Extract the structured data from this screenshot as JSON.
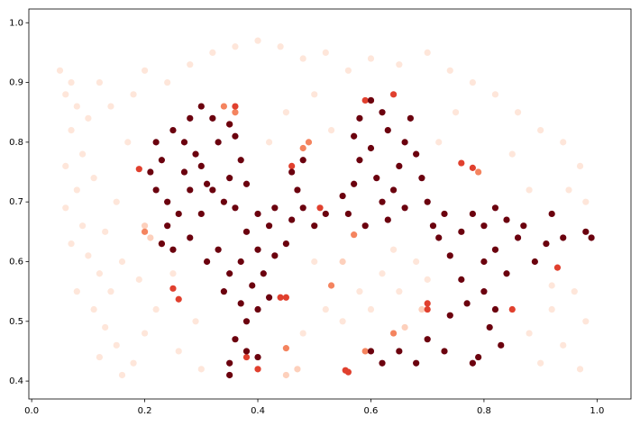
{
  "chart_data": {
    "type": "scatter",
    "xlim": [
      -0.005,
      1.06
    ],
    "ylim": [
      0.37,
      1.023
    ],
    "xticks": [
      {
        "value": 0,
        "label": "0.0"
      },
      0.2,
      0.4,
      0.6,
      0.8,
      {
        "value": 1,
        "label": "1.0"
      }
    ],
    "yticks": [
      0.4,
      0.5,
      0.6,
      0.7,
      0.8,
      0.9,
      {
        "value": 1,
        "label": "1.0"
      }
    ],
    "series": [
      {
        "color": "#fee6da",
        "x": [
          0.05,
          0.07,
          0.06,
          0.08,
          0.1,
          0.07,
          0.09,
          0.06,
          0.11,
          0.08,
          0.06,
          0.09,
          0.07,
          0.1,
          0.12,
          0.08,
          0.11,
          0.13,
          0.15,
          0.12,
          0.16,
          0.18,
          0.14,
          0.16,
          0.13,
          0.15,
          0.17,
          0.14,
          0.12,
          0.18,
          0.2,
          0.24,
          0.28,
          0.32,
          0.36,
          0.4,
          0.44,
          0.48,
          0.52,
          0.56,
          0.6,
          0.65,
          0.7,
          0.74,
          0.78,
          0.82,
          0.86,
          0.9,
          0.94,
          0.97,
          0.95,
          0.98,
          0.96,
          0.92,
          0.98,
          0.94,
          0.9,
          0.97,
          0.88,
          0.92,
          0.85,
          0.88,
          0.45,
          0.5,
          0.53,
          0.42,
          0.5,
          0.52,
          0.48,
          0.55,
          0.58,
          0.62,
          0.65,
          0.6,
          0.68,
          0.7,
          0.64,
          0.72,
          0.75,
          0.2,
          0.22,
          0.26,
          0.29,
          0.3,
          0.25,
          0.19
        ],
        "y": [
          0.92,
          0.9,
          0.88,
          0.86,
          0.84,
          0.82,
          0.78,
          0.76,
          0.74,
          0.72,
          0.69,
          0.66,
          0.63,
          0.61,
          0.58,
          0.55,
          0.52,
          0.49,
          0.46,
          0.44,
          0.41,
          0.43,
          0.55,
          0.6,
          0.65,
          0.7,
          0.8,
          0.86,
          0.9,
          0.88,
          0.92,
          0.9,
          0.93,
          0.95,
          0.96,
          0.97,
          0.96,
          0.94,
          0.95,
          0.92,
          0.94,
          0.93,
          0.95,
          0.92,
          0.9,
          0.88,
          0.85,
          0.82,
          0.8,
          0.76,
          0.72,
          0.7,
          0.55,
          0.52,
          0.5,
          0.46,
          0.43,
          0.42,
          0.48,
          0.56,
          0.78,
          0.72,
          0.85,
          0.88,
          0.82,
          0.8,
          0.6,
          0.52,
          0.48,
          0.5,
          0.55,
          0.58,
          0.55,
          0.52,
          0.6,
          0.57,
          0.62,
          0.8,
          0.85,
          0.48,
          0.52,
          0.45,
          0.5,
          0.42,
          0.58,
          0.57
        ]
      },
      {
        "color": "#fdd0bc",
        "x": [
          0.21,
          0.2,
          0.69,
          0.66,
          0.55,
          0.45,
          0.47
        ],
        "y": [
          0.64,
          0.66,
          0.52,
          0.49,
          0.6,
          0.41,
          0.42
        ]
      },
      {
        "color": "#f4845f",
        "x": [
          0.34,
          0.36,
          0.48,
          0.49,
          0.79,
          0.64,
          0.59,
          0.57,
          0.2,
          0.53,
          0.45
        ],
        "y": [
          0.86,
          0.85,
          0.79,
          0.8,
          0.75,
          0.48,
          0.45,
          0.645,
          0.65,
          0.56,
          0.455
        ]
      },
      {
        "color": "#e0402e",
        "x": [
          0.19,
          0.25,
          0.26,
          0.36,
          0.35,
          0.4,
          0.38,
          0.44,
          0.45,
          0.56,
          0.555,
          0.59,
          0.6,
          0.64,
          0.7,
          0.7,
          0.76,
          0.78,
          0.85,
          0.93,
          0.51,
          0.46,
          0.23
        ],
        "y": [
          0.755,
          0.555,
          0.537,
          0.86,
          0.83,
          0.42,
          0.44,
          0.54,
          0.54,
          0.415,
          0.418,
          0.87,
          0.87,
          0.88,
          0.52,
          0.53,
          0.765,
          0.757,
          0.52,
          0.59,
          0.69,
          0.76,
          0.63
        ]
      },
      {
        "color": "#6b010e",
        "x": [
          0.22,
          0.23,
          0.22,
          0.24,
          0.21,
          0.25,
          0.27,
          0.28,
          0.3,
          0.32,
          0.33,
          0.3,
          0.28,
          0.26,
          0.24,
          0.23,
          0.25,
          0.28,
          0.3,
          0.32,
          0.34,
          0.36,
          0.35,
          0.37,
          0.36,
          0.35,
          0.38,
          0.38,
          0.4,
          0.42,
          0.4,
          0.37,
          0.35,
          0.33,
          0.31,
          0.34,
          0.37,
          0.38,
          0.36,
          0.35,
          0.38,
          0.4,
          0.35,
          0.39,
          0.41,
          0.42,
          0.4,
          0.43,
          0.45,
          0.46,
          0.48,
          0.46,
          0.48,
          0.47,
          0.5,
          0.52,
          0.43,
          0.29,
          0.31,
          0.27,
          0.55,
          0.56,
          0.57,
          0.58,
          0.57,
          0.58,
          0.6,
          0.62,
          0.63,
          0.6,
          0.61,
          0.62,
          0.64,
          0.65,
          0.66,
          0.67,
          0.68,
          0.69,
          0.7,
          0.66,
          0.71,
          0.73,
          0.72,
          0.74,
          0.76,
          0.78,
          0.8,
          0.82,
          0.84,
          0.86,
          0.87,
          0.82,
          0.84,
          0.8,
          0.76,
          0.77,
          0.8,
          0.82,
          0.81,
          0.83,
          0.79,
          0.78,
          0.73,
          0.7,
          0.68,
          0.65,
          0.62,
          0.6,
          0.74,
          0.89,
          0.91,
          0.92,
          0.94,
          0.98,
          0.99,
          0.59,
          0.63
        ],
        "y": [
          0.8,
          0.77,
          0.72,
          0.7,
          0.75,
          0.82,
          0.8,
          0.84,
          0.86,
          0.84,
          0.8,
          0.76,
          0.72,
          0.68,
          0.66,
          0.63,
          0.62,
          0.64,
          0.68,
          0.72,
          0.7,
          0.69,
          0.74,
          0.77,
          0.81,
          0.83,
          0.73,
          0.65,
          0.68,
          0.66,
          0.62,
          0.6,
          0.58,
          0.62,
          0.6,
          0.55,
          0.53,
          0.5,
          0.47,
          0.43,
          0.45,
          0.44,
          0.41,
          0.56,
          0.58,
          0.54,
          0.52,
          0.61,
          0.63,
          0.67,
          0.69,
          0.75,
          0.77,
          0.72,
          0.66,
          0.68,
          0.69,
          0.78,
          0.73,
          0.75,
          0.71,
          0.68,
          0.73,
          0.77,
          0.81,
          0.84,
          0.87,
          0.85,
          0.82,
          0.79,
          0.74,
          0.7,
          0.72,
          0.76,
          0.8,
          0.84,
          0.78,
          0.74,
          0.7,
          0.69,
          0.66,
          0.68,
          0.64,
          0.61,
          0.65,
          0.68,
          0.66,
          0.69,
          0.67,
          0.64,
          0.66,
          0.62,
          0.58,
          0.6,
          0.57,
          0.53,
          0.55,
          0.52,
          0.49,
          0.46,
          0.44,
          0.43,
          0.45,
          0.47,
          0.43,
          0.45,
          0.43,
          0.45,
          0.51,
          0.6,
          0.63,
          0.68,
          0.64,
          0.65,
          0.64,
          0.66,
          0.67
        ]
      }
    ]
  }
}
